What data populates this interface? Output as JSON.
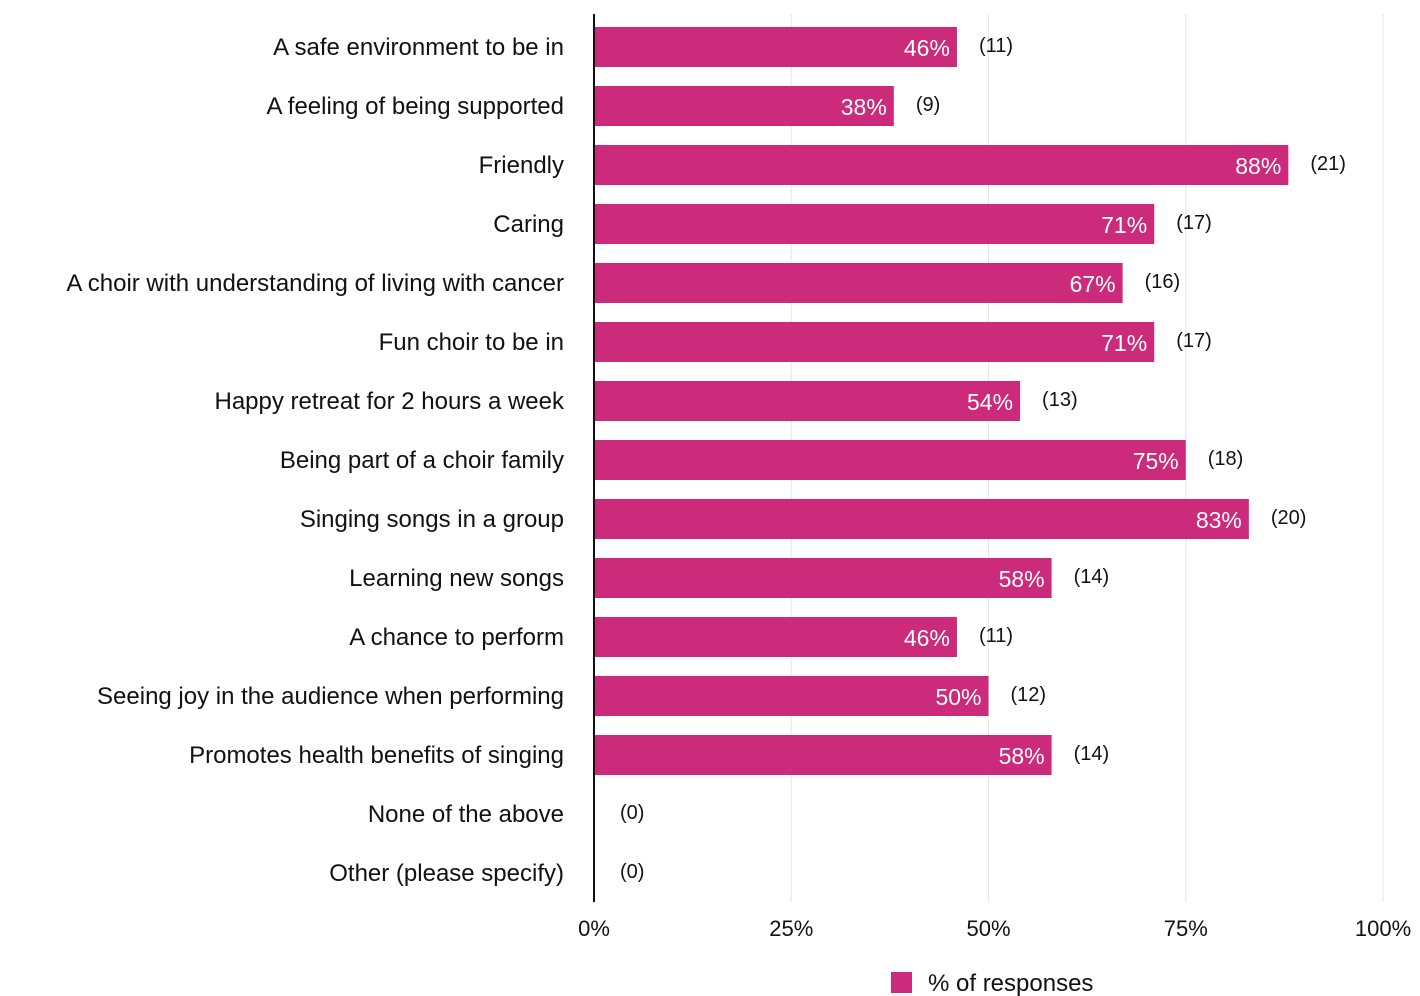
{
  "chart_data": {
    "type": "bar",
    "orientation": "horizontal",
    "categories": [
      "A safe environment to be in",
      "A feeling of being supported",
      "Friendly",
      "Caring",
      "A choir with understanding of living with cancer",
      "Fun choir to be in",
      "Happy retreat for 2 hours a week",
      "Being part of a choir family",
      "Singing songs in a group",
      "Learning new songs",
      "A chance to perform",
      "Seeing joy in the audience when performing",
      "Promotes health benefits of singing",
      "None of the above",
      "Other (please specify)"
    ],
    "series": [
      {
        "name": "% of responses",
        "values": [
          46,
          38,
          88,
          71,
          67,
          71,
          54,
          75,
          83,
          58,
          46,
          50,
          58,
          0,
          0
        ],
        "labels": [
          "46%",
          "38%",
          "88%",
          "71%",
          "67%",
          "71%",
          "54%",
          "75%",
          "83%",
          "58%",
          "46%",
          "50%",
          "58%",
          "",
          ""
        ],
        "counts": [
          "(11)",
          "(9)",
          "(21)",
          "(17)",
          "(16)",
          "(17)",
          "(13)",
          "(18)",
          "(20)",
          "(14)",
          "(11)",
          "(12)",
          "(14)",
          "(0)",
          "(0)"
        ]
      }
    ],
    "xlim": [
      0,
      100
    ],
    "xticks": [
      0,
      25,
      50,
      75,
      100
    ],
    "xtick_labels": [
      "0%",
      "25%",
      "50%",
      "75%",
      "100%"
    ],
    "grid": true,
    "legend_position": "bottom",
    "colors": {
      "bar": "#cc2a7a",
      "grid": "#e6e6e6",
      "axis": "#111111"
    }
  }
}
